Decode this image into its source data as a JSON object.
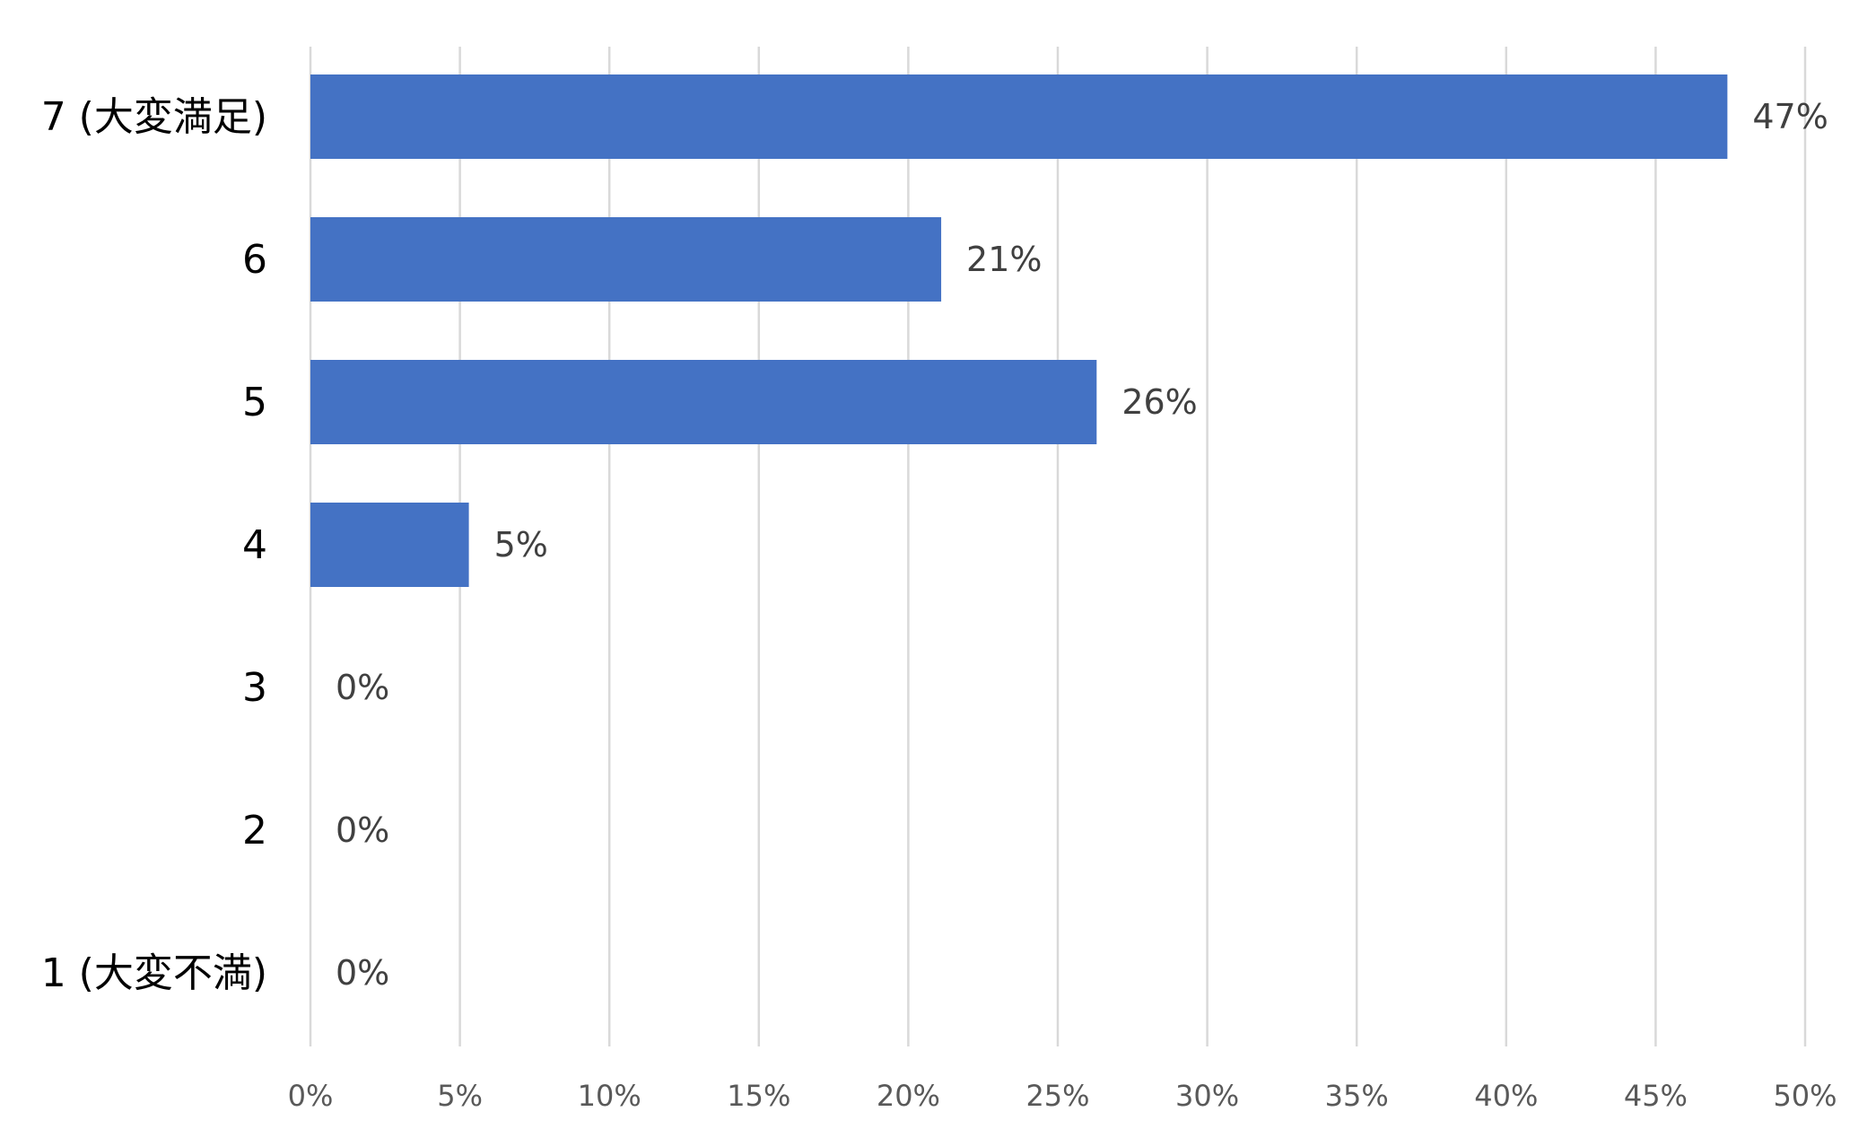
{
  "chart_data": {
    "type": "bar",
    "orientation": "horizontal",
    "categories": [
      "7 (大変満足)",
      "6",
      "5",
      "4",
      "3",
      "2",
      "1 (大変不満)"
    ],
    "values": [
      47.4,
      21.1,
      26.3,
      5.3,
      0,
      0,
      0
    ],
    "value_labels": [
      "47%",
      "21%",
      "26%",
      "5%",
      "0%",
      "0%",
      "0%"
    ],
    "xlim": [
      0,
      50
    ],
    "x_ticks": [
      0,
      5,
      10,
      15,
      20,
      25,
      30,
      35,
      40,
      45,
      50
    ],
    "x_tick_labels": [
      "0%",
      "5%",
      "10%",
      "15%",
      "20%",
      "25%",
      "30%",
      "35%",
      "40%",
      "45%",
      "50%"
    ],
    "title": "",
    "xlabel": "",
    "ylabel": "",
    "grid": "vertical",
    "legend": "none",
    "bar_color": "#4472c4"
  }
}
